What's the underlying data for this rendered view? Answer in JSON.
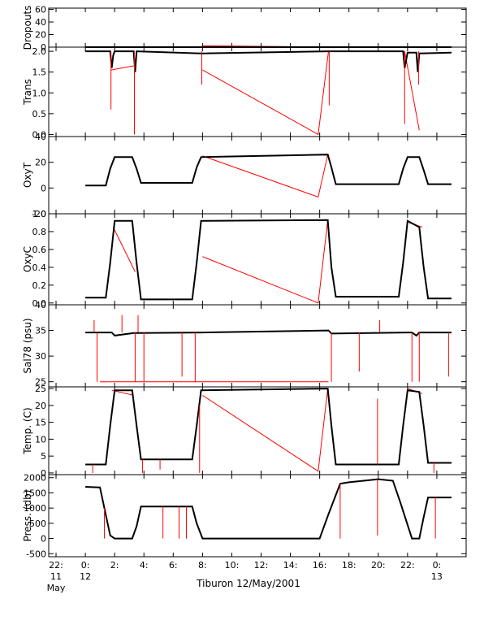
{
  "chart_data": {
    "type": "line",
    "title": "",
    "xlabel": "Tiburon 12/May/2001",
    "x_unit": "hours since 00:00 12 May 2001",
    "xlim": [
      -2.5,
      26.0
    ],
    "x_ticks": [
      {
        "t": -2,
        "lines": [
          "22:",
          "11",
          "May"
        ]
      },
      {
        "t": 0,
        "lines": [
          "0:",
          "12"
        ]
      },
      {
        "t": 2,
        "lines": [
          "2:"
        ]
      },
      {
        "t": 4,
        "lines": [
          "4:"
        ]
      },
      {
        "t": 6,
        "lines": [
          "6:"
        ]
      },
      {
        "t": 8,
        "lines": [
          "8:"
        ]
      },
      {
        "t": 10,
        "lines": [
          "10:"
        ]
      },
      {
        "t": 12,
        "lines": [
          "12:"
        ]
      },
      {
        "t": 14,
        "lines": [
          "14:"
        ]
      },
      {
        "t": 16,
        "lines": [
          "16:"
        ]
      },
      {
        "t": 18,
        "lines": [
          "18:"
        ]
      },
      {
        "t": 20,
        "lines": [
          "20:"
        ]
      },
      {
        "t": 22,
        "lines": [
          "22:"
        ]
      },
      {
        "t": 24,
        "lines": [
          "0:",
          "13"
        ]
      }
    ],
    "colors": {
      "measured": "#000000",
      "interpolated": "#ff0000",
      "axis": "#000000",
      "minor_tick": "#aaaaaa"
    },
    "panels": [
      {
        "ylabel": "Dropouts",
        "ylim": [
          0,
          62
        ],
        "ticks": [
          0,
          20,
          40,
          60
        ],
        "series": [
          {
            "t": [
              0,
              2.5,
              3.5,
              7.9,
              16.6,
              22.0,
              23.0,
              25.0
            ],
            "v": [
              0,
              0,
              0,
              0,
              0,
              0,
              0,
              0
            ]
          }
        ],
        "interp": [
          {
            "t": [
              8.0,
              16.5
            ],
            "v": [
              2.2,
              0.2
            ]
          }
        ]
      },
      {
        "ylabel": "Trans",
        "ylim": [
          -0.05,
          2.1
        ],
        "ticks": [
          0.0,
          0.5,
          1.0,
          1.5,
          2.0
        ],
        "tick_labels": [
          "0.0",
          "0.5",
          "1.0",
          "1.5",
          "2.0"
        ],
        "series": [
          {
            "t": [
              0,
              1.7,
              1.8,
              1.9,
              2.0,
              3.3,
              3.4,
              3.5,
              7.9,
              16.6,
              21.7,
              21.8,
              22.0,
              22.6,
              22.7,
              22.8,
              25.0
            ],
            "v": [
              2.0,
              2.0,
              1.6,
              1.9,
              2.0,
              2.0,
              1.5,
              2.0,
              1.95,
              2.0,
              2.0,
              1.6,
              1.97,
              1.97,
              1.5,
              1.95,
              1.97
            ]
          }
        ],
        "interp": [
          {
            "t": [
              1.75,
              3.3
            ],
            "v": [
              1.55,
              1.65
            ]
          },
          {
            "t": [
              8.0,
              15.9,
              16.6
            ],
            "v": [
              1.55,
              0.0,
              2.0
            ]
          },
          {
            "t": [
              21.8,
              22.8
            ],
            "v": [
              2.0,
              0.1
            ]
          }
        ]
      },
      {
        "ylabel": "OxyT",
        "ylim": [
          -20,
          40
        ],
        "ticks": [
          -20,
          0,
          20,
          40
        ],
        "series": [
          {
            "t": [
              0,
              1.4,
              1.7,
              2.0,
              3.2,
              3.5,
              3.8,
              7.3,
              7.6,
              7.9,
              16.55,
              16.8,
              17.1,
              21.4,
              21.7,
              22.0,
              22.8,
              23.1,
              23.4,
              25.0
            ],
            "v": [
              2,
              2,
              15,
              24,
              24,
              15,
              4,
              4,
              16,
              24,
              26,
              16,
              3,
              3,
              15,
              24,
              24,
              14,
              3,
              3
            ]
          }
        ],
        "interp": [
          {
            "t": [
              8.0,
              15.9,
              16.55
            ],
            "v": [
              25,
              -7,
              26
            ]
          }
        ]
      },
      {
        "ylabel": "OxyC",
        "ylim": [
          -0.02,
          1.0
        ],
        "ticks": [
          0.0,
          0.2,
          0.4,
          0.6,
          0.8,
          1.0
        ],
        "tick_labels": [
          "0.0",
          "0.2",
          "0.4",
          "0.6",
          "0.8",
          "1.0"
        ],
        "series": [
          {
            "t": [
              0,
              1.4,
              1.7,
              2.0,
              3.2,
              3.5,
              3.8,
              7.3,
              7.6,
              7.9,
              16.55,
              16.8,
              17.1,
              21.4,
              21.7,
              22.0,
              22.8,
              23.1,
              23.4,
              25.0
            ],
            "v": [
              0.06,
              0.06,
              0.45,
              0.92,
              0.92,
              0.45,
              0.04,
              0.04,
              0.45,
              0.92,
              0.93,
              0.4,
              0.07,
              0.07,
              0.45,
              0.92,
              0.85,
              0.4,
              0.05,
              0.05
            ]
          }
        ],
        "interp": [
          {
            "t": [
              1.9,
              3.4
            ],
            "v": [
              0.85,
              0.35
            ]
          },
          {
            "t": [
              8.0,
              15.9,
              16.55
            ],
            "v": [
              0.52,
              0.0,
              0.93
            ]
          },
          {
            "t": [
              22.1,
              23.0
            ],
            "v": [
              0.9,
              0.85
            ]
          }
        ]
      },
      {
        "ylabel": "Sal78 (psu)",
        "ylim": [
          24,
          40
        ],
        "ticks": [
          25,
          30,
          35,
          40
        ],
        "series": [
          {
            "t": [
              0,
              1.8,
              2.0,
              3.3,
              3.6,
              8.0,
              16.6,
              16.8,
              22.0,
              22.3,
              22.6,
              22.8,
              25.0
            ],
            "v": [
              34.6,
              34.6,
              34.0,
              34.5,
              34.5,
              34.6,
              35.0,
              34.4,
              34.6,
              34.6,
              34.0,
              34.6,
              34.6
            ]
          }
        ],
        "interp": [
          {
            "t": [
              1.0,
              16.6
            ],
            "v": [
              25.0,
              25.0
            ]
          }
        ]
      },
      {
        "ylabel": "Temp. (C)",
        "ylim": [
          -0.5,
          25.5
        ],
        "ticks": [
          0,
          5,
          10,
          15,
          20,
          25
        ],
        "series": [
          {
            "t": [
              0,
              1.4,
              1.7,
              2.0,
              3.2,
              3.5,
              3.8,
              7.3,
              7.6,
              7.9,
              16.55,
              16.8,
              17.1,
              21.4,
              21.7,
              22.0,
              22.8,
              23.1,
              23.4,
              25.0
            ],
            "v": [
              2.5,
              2.5,
              14,
              24.5,
              24.5,
              14,
              4,
              4,
              14,
              24.5,
              25,
              14,
              2.5,
              2.5,
              14,
              24.5,
              24,
              14,
              3,
              3
            ]
          }
        ],
        "interp": [
          {
            "t": [
              1.8,
              3.3
            ],
            "v": [
              24.5,
              23.0
            ]
          },
          {
            "t": [
              8.0,
              15.9,
              16.55
            ],
            "v": [
              23.0,
              0.5,
              25.0
            ]
          },
          {
            "t": [
              22.0,
              23.0
            ],
            "v": [
              25.0,
              23.5
            ]
          }
        ]
      },
      {
        "ylabel": "Press. (db)",
        "ylim": [
          -600,
          2100
        ],
        "ticks": [
          -500,
          0,
          500,
          1000,
          1500,
          2000
        ],
        "series": [
          {
            "t": [
              0,
              1.0,
              1.7,
              2.0,
              3.2,
              3.5,
              3.8,
              7.3,
              7.6,
              8.0,
              16.0,
              16.6,
              17.4,
              18.0,
              19.0,
              20.0,
              21.0,
              21.5,
              22.3,
              22.8,
              23.1,
              23.4,
              25.0
            ],
            "v": [
              1700,
              1680,
              100,
              0,
              0,
              400,
              1050,
              1050,
              500,
              0,
              0,
              800,
              1800,
              1850,
              1900,
              1950,
              1900,
              1200,
              0,
              0,
              700,
              1350,
              1350
            ]
          }
        ],
        "interp": [
          {
            "t": [
              8.0,
              16.0
            ],
            "v": [
              0,
              0
            ]
          }
        ]
      }
    ],
    "spikes": [
      {
        "panel": 1,
        "t": 1.75,
        "from": 2.0,
        "to": 0.6
      },
      {
        "panel": 1,
        "t": 3.35,
        "from": 2.0,
        "to": 0.0
      },
      {
        "panel": 1,
        "t": 7.95,
        "from": 2.0,
        "to": 1.2
      },
      {
        "panel": 1,
        "t": 16.65,
        "from": 2.0,
        "to": 0.7
      },
      {
        "panel": 1,
        "t": 21.8,
        "from": 2.0,
        "to": 0.25
      },
      {
        "panel": 1,
        "t": 22.75,
        "from": 2.0,
        "to": 1.2
      },
      {
        "panel": 4,
        "t": 0.6,
        "from": 34.6,
        "to": 37.0
      },
      {
        "panel": 4,
        "t": 0.8,
        "from": 34.6,
        "to": 25.0
      },
      {
        "panel": 4,
        "t": 2.5,
        "from": 34.6,
        "to": 38.0
      },
      {
        "panel": 4,
        "t": 3.4,
        "from": 34.6,
        "to": 25.0
      },
      {
        "panel": 4,
        "t": 3.6,
        "from": 34.6,
        "to": 38.0
      },
      {
        "panel": 4,
        "t": 4.0,
        "from": 34.6,
        "to": 25.0
      },
      {
        "panel": 4,
        "t": 6.6,
        "from": 34.6,
        "to": 26.0
      },
      {
        "panel": 4,
        "t": 7.5,
        "from": 34.6,
        "to": 25.0
      },
      {
        "panel": 4,
        "t": 16.8,
        "from": 34.6,
        "to": 25.0
      },
      {
        "panel": 4,
        "t": 18.7,
        "from": 34.6,
        "to": 27.0
      },
      {
        "panel": 4,
        "t": 20.1,
        "from": 34.6,
        "to": 37.0
      },
      {
        "panel": 4,
        "t": 22.3,
        "from": 34.6,
        "to": 25.0
      },
      {
        "panel": 4,
        "t": 22.8,
        "from": 34.6,
        "to": 25.0
      },
      {
        "panel": 4,
        "t": 24.8,
        "from": 34.6,
        "to": 26.0
      },
      {
        "panel": 5,
        "t": 0.5,
        "from": 2.5,
        "to": 0.0
      },
      {
        "panel": 5,
        "t": 3.9,
        "from": 4.0,
        "to": 0.0
      },
      {
        "panel": 5,
        "t": 5.1,
        "from": 4.0,
        "to": 1.0
      },
      {
        "panel": 5,
        "t": 7.8,
        "from": 20.0,
        "to": 0.0
      },
      {
        "panel": 5,
        "t": 19.95,
        "from": 2.5,
        "to": 22.0
      },
      {
        "panel": 5,
        "t": 23.8,
        "from": 3.0,
        "to": 0.0
      },
      {
        "panel": 6,
        "t": 1.3,
        "from": 1000,
        "to": 0
      },
      {
        "panel": 6,
        "t": 5.3,
        "from": 1050,
        "to": 0
      },
      {
        "panel": 6,
        "t": 6.4,
        "from": 1050,
        "to": 0
      },
      {
        "panel": 6,
        "t": 6.9,
        "from": 1050,
        "to": 0
      },
      {
        "panel": 6,
        "t": 17.4,
        "from": 1800,
        "to": 0
      },
      {
        "panel": 6,
        "t": 19.95,
        "from": 1950,
        "to": 100
      },
      {
        "panel": 6,
        "t": 22.3,
        "from": 0,
        "to": 0
      },
      {
        "panel": 6,
        "t": 23.9,
        "from": 1350,
        "to": 0
      }
    ]
  }
}
